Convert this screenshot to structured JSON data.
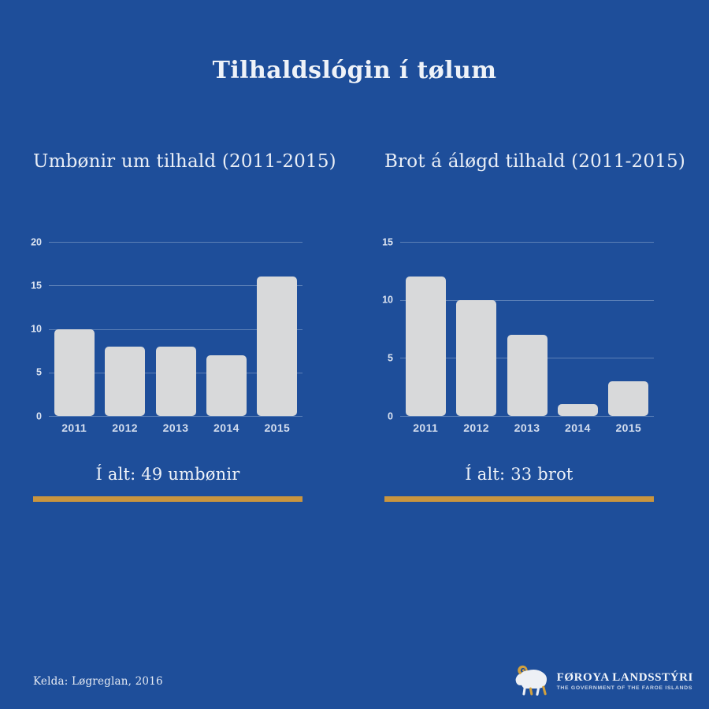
{
  "title": "Tilhaldslógin í tølum",
  "source": "Kelda: Løgreglan, 2016",
  "logo": {
    "name": "FØROYA LANDSSTÝRI",
    "subtitle": "THE GOVERNMENT OF THE FAROE ISLANDS",
    "icon": "ram-icon"
  },
  "colors": {
    "background": "#1e4e9a",
    "bar": "#d8d9da",
    "gold": "#c9953f",
    "text": "#eef2f8",
    "gridline": "rgba(223,233,247,0.32)"
  },
  "chart_data": [
    {
      "type": "bar",
      "title": "Umbønir um tilhald (2011-2015)",
      "categories": [
        "2011",
        "2012",
        "2013",
        "2014",
        "2015"
      ],
      "values": [
        10,
        8,
        8,
        7,
        16
      ],
      "ylim": [
        0,
        20
      ],
      "yticks": [
        0,
        5,
        10,
        15,
        20
      ],
      "grid": true,
      "legend": "none",
      "total_label": "Í alt: 49 umbønir"
    },
    {
      "type": "bar",
      "title": "Brot á áløgd tilhald (2011-2015)",
      "categories": [
        "2011",
        "2012",
        "2013",
        "2014",
        "2015"
      ],
      "values": [
        12,
        10,
        7,
        1,
        3
      ],
      "ylim": [
        0,
        15
      ],
      "yticks": [
        0,
        5,
        10,
        15
      ],
      "grid": true,
      "legend": "none",
      "total_label": "Í alt: 33 brot"
    }
  ]
}
